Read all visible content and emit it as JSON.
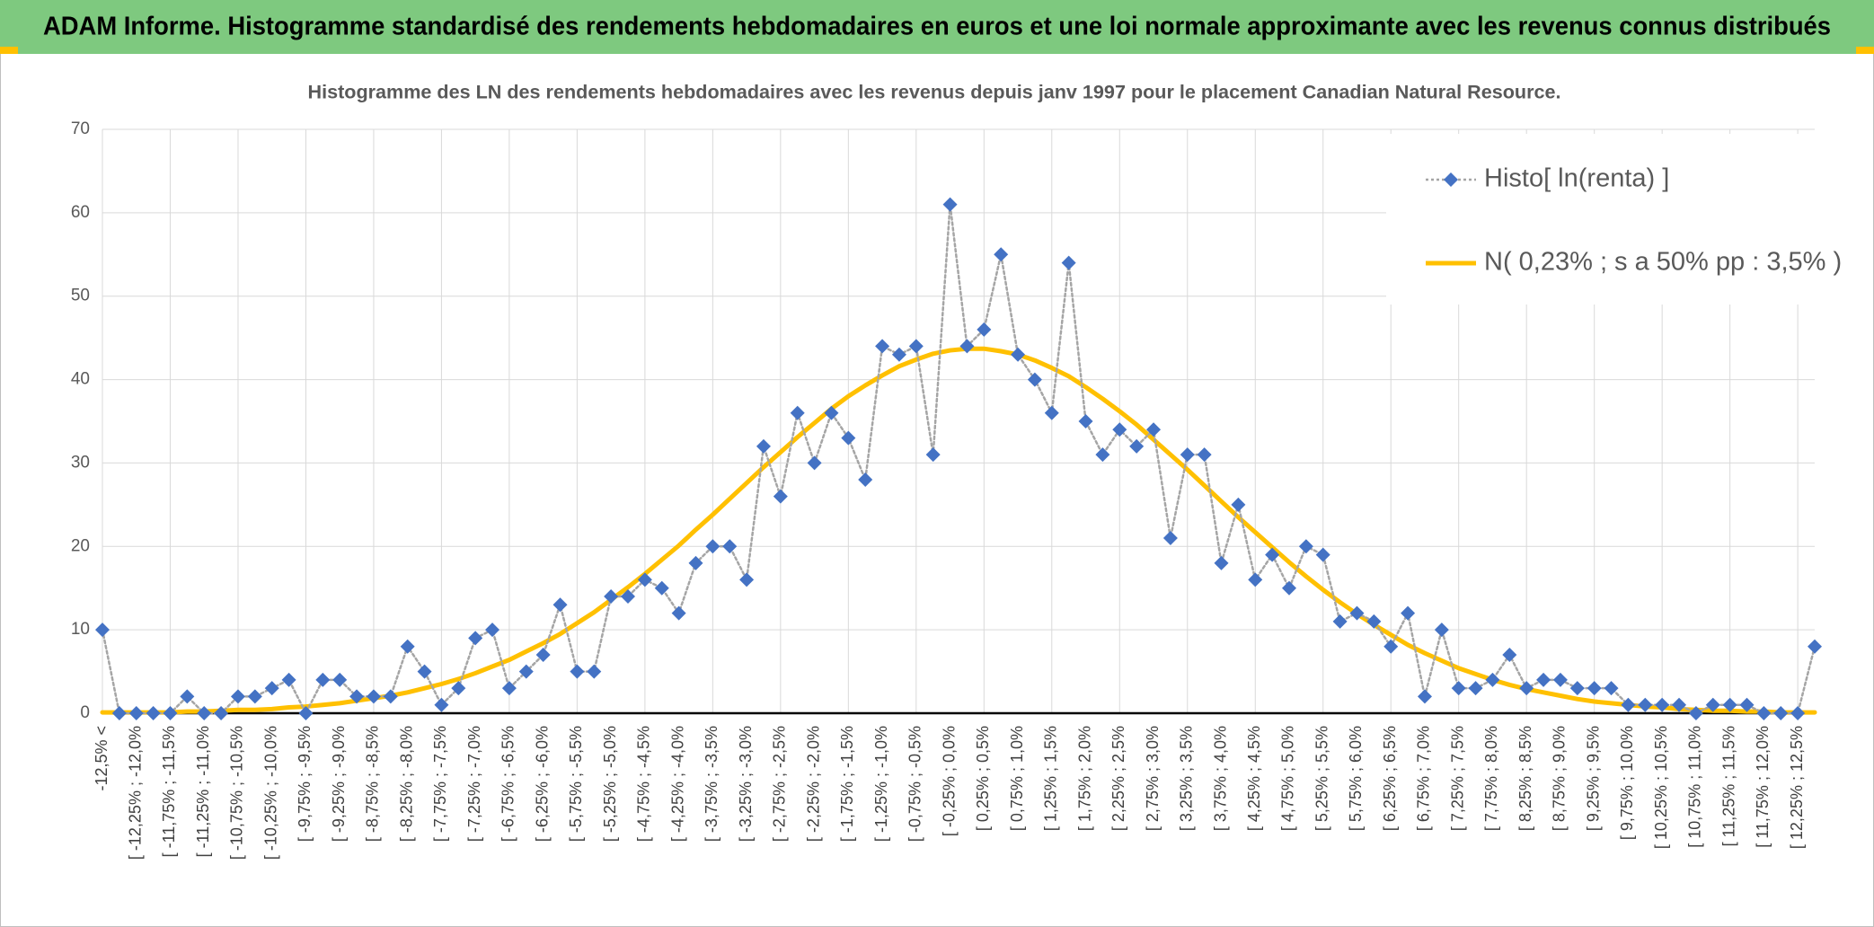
{
  "chart_data": {
    "type": "line",
    "title": "ADAM Informe. Histogramme standardisé des rendements hebdomadaires en euros et une loi normale approximante avec les revenus connus distribués",
    "subtitle": "Histogramme des LN des rendements hebdomadaires avec les revenus depuis janv 1997 pour le placement Canadian Natural Resource.",
    "categories": [
      "-12,5% <",
      null,
      "[ -12,25% ; -12,0%",
      null,
      "[ -11,75% ; -11,5%",
      null,
      "[ -11,25% ; -11,0%",
      null,
      "[ -10,75% ; -10,5%",
      null,
      "[ -10,25% ; -10,0%",
      null,
      "[ -9,75% ; -9,5%",
      null,
      "[ -9,25% ; -9,0%",
      null,
      "[ -8,75% ; -8,5%",
      null,
      "[ -8,25% ; -8,0%",
      null,
      "[ -7,75% ; -7,5%",
      null,
      "[ -7,25% ; -7,0%",
      null,
      "[ -6,75% ; -6,5%",
      null,
      "[ -6,25% ; -6,0%",
      null,
      "[ -5,75% ; -5,5%",
      null,
      "[ -5,25% ; -5,0%",
      null,
      "[ -4,75% ; -4,5%",
      null,
      "[ -4,25% ; -4,0%",
      null,
      "[ -3,75% ; -3,5%",
      null,
      "[ -3,25% ; -3,0%",
      null,
      "[ -2,75% ; -2,5%",
      null,
      "[ -2,25% ; -2,0%",
      null,
      "[ -1,75% ; -1,5%",
      null,
      "[ -1,25% ; -1,0%",
      null,
      "[ -0,75% ; -0,5%",
      null,
      "[ -0,25% ; 0,0%",
      null,
      "[ 0,25% ; 0,5%",
      null,
      "[ 0,75% ; 1,0%",
      null,
      "[ 1,25% ; 1,5%",
      null,
      "[ 1,75% ; 2,0%",
      null,
      "[ 2,25% ; 2,5%",
      null,
      "[ 2,75% ; 3,0%",
      null,
      "[ 3,25% ; 3,5%",
      null,
      "[ 3,75% ; 4,0%",
      null,
      "[ 4,25% ; 4,5%",
      null,
      "[ 4,75% ; 5,0%",
      null,
      "[ 5,25% ; 5,5%",
      null,
      "[ 5,75% ; 6,0%",
      null,
      "[ 6,25% ; 6,5%",
      null,
      "[ 6,75% ; 7,0%",
      null,
      "[ 7,25% ; 7,5%",
      null,
      "[ 7,75% ; 8,0%",
      null,
      "[ 8,25% ; 8,5%",
      null,
      "[ 8,75% ; 9,0%",
      null,
      "[ 9,25% ; 9,5%",
      null,
      "[ 9,75% ; 10,0%",
      null,
      "[ 10,25% ; 10,5%",
      null,
      "[ 10,75% ; 11,0%",
      null,
      "[ 11,25% ; 11,5%",
      null,
      "[ 11,75% ; 12,0%",
      null,
      "[ 12,25% ; 12,5%",
      null
    ],
    "series": [
      {
        "name": "Histo[ ln(renta) ]",
        "color": "#4472c4",
        "line_color": "#a5a5a5",
        "line_style": "dotted",
        "marker": "diamond",
        "values": [
          10,
          0,
          0,
          0,
          0,
          2,
          0,
          0,
          2,
          2,
          3,
          4,
          0,
          4,
          4,
          2,
          2,
          2,
          8,
          5,
          1,
          3,
          9,
          10,
          3,
          5,
          7,
          13,
          5,
          5,
          14,
          14,
          16,
          15,
          12,
          18,
          20,
          20,
          16,
          32,
          26,
          36,
          30,
          36,
          33,
          28,
          44,
          43,
          44,
          31,
          61,
          44,
          46,
          55,
          43,
          40,
          36,
          54,
          35,
          31,
          34,
          32,
          34,
          21,
          31,
          31,
          18,
          25,
          16,
          19,
          15,
          20,
          19,
          11,
          12,
          11,
          8,
          12,
          2,
          10,
          3,
          3,
          4,
          7,
          3,
          4,
          4,
          3,
          3,
          3,
          1,
          1,
          1,
          1,
          0,
          1,
          1,
          1,
          0,
          0,
          0,
          8
        ]
      },
      {
        "name": "N( 0,23% ; s a 50% pp : 3,5% )",
        "color": "#ffc000",
        "line_style": "solid",
        "marker": "none",
        "values": [
          0.1,
          0.1,
          0.1,
          0.1,
          0.1,
          0.2,
          0.2,
          0.3,
          0.4,
          0.4,
          0.5,
          0.7,
          0.8,
          1.0,
          1.2,
          1.5,
          1.8,
          2.1,
          2.5,
          3.0,
          3.5,
          4.1,
          4.8,
          5.6,
          6.4,
          7.4,
          8.4,
          9.5,
          10.8,
          12.1,
          13.6,
          15.1,
          16.7,
          18.4,
          20.1,
          22.0,
          23.8,
          25.7,
          27.6,
          29.5,
          31.3,
          33.1,
          34.8,
          36.5,
          38.0,
          39.3,
          40.5,
          41.6,
          42.4,
          43.1,
          43.5,
          43.7,
          43.7,
          43.4,
          43.0,
          42.3,
          41.4,
          40.4,
          39.1,
          37.7,
          36.2,
          34.6,
          32.8,
          31.0,
          29.2,
          27.3,
          25.4,
          23.5,
          21.7,
          19.9,
          18.1,
          16.4,
          14.8,
          13.3,
          11.9,
          10.6,
          9.4,
          8.2,
          7.2,
          6.3,
          5.4,
          4.7,
          4.0,
          3.4,
          2.9,
          2.5,
          2.1,
          1.7,
          1.4,
          1.2,
          1.0,
          0.8,
          0.7,
          0.5,
          0.4,
          0.3,
          0.3,
          0.2,
          0.2,
          0.1,
          0.1,
          0.1
        ]
      }
    ],
    "ylim": [
      0,
      70
    ],
    "yticks": [
      0,
      10,
      20,
      30,
      40,
      50,
      60,
      70
    ],
    "grid": true,
    "legend": "top-right"
  }
}
